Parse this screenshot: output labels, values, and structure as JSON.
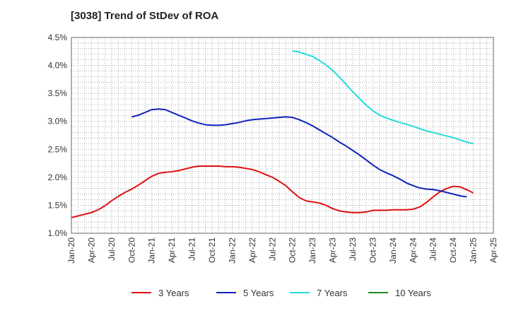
{
  "chart_data": {
    "type": "line",
    "title": "[3038]  Trend of StDev of ROA",
    "xlabel": "",
    "ylabel": "",
    "ylim": [
      1.0,
      4.5
    ],
    "y_ticks": [
      "1.0%",
      "1.5%",
      "2.0%",
      "2.5%",
      "3.0%",
      "3.5%",
      "4.0%",
      "4.5%"
    ],
    "x_ticks": [
      "Jan-20",
      "Apr-20",
      "Jul-20",
      "Oct-20",
      "Jan-21",
      "Apr-21",
      "Jul-21",
      "Oct-21",
      "Jan-22",
      "Apr-22",
      "Jul-22",
      "Oct-22",
      "Jan-23",
      "Apr-23",
      "Jul-23",
      "Oct-23",
      "Jan-24",
      "Apr-24",
      "Jul-24",
      "Oct-24",
      "Jan-25",
      "Apr-25"
    ],
    "grid": true,
    "legend_position": "bottom",
    "series": [
      {
        "name": "3 Years",
        "color": "#dd1111",
        "points": [
          [
            "Jan-20",
            1.28
          ],
          [
            "Feb-20",
            1.31
          ],
          [
            "Mar-20",
            1.34
          ],
          [
            "Apr-20",
            1.37
          ],
          [
            "May-20",
            1.42
          ],
          [
            "Jun-20",
            1.49
          ],
          [
            "Jul-20",
            1.58
          ],
          [
            "Aug-20",
            1.66
          ],
          [
            "Sep-20",
            1.73
          ],
          [
            "Oct-20",
            1.79
          ],
          [
            "Nov-20",
            1.86
          ],
          [
            "Dec-20",
            1.94
          ],
          [
            "Jan-21",
            2.02
          ],
          [
            "Feb-21",
            2.07
          ],
          [
            "Mar-21",
            2.09
          ],
          [
            "Apr-21",
            2.1
          ],
          [
            "May-21",
            2.12
          ],
          [
            "Jun-21",
            2.15
          ],
          [
            "Jul-21",
            2.18
          ],
          [
            "Aug-21",
            2.2
          ],
          [
            "Sep-21",
            2.2
          ],
          [
            "Oct-21",
            2.2
          ],
          [
            "Nov-21",
            2.2
          ],
          [
            "Dec-21",
            2.19
          ],
          [
            "Jan-22",
            2.19
          ],
          [
            "Feb-22",
            2.18
          ],
          [
            "Mar-22",
            2.16
          ],
          [
            "Apr-22",
            2.14
          ],
          [
            "May-22",
            2.1
          ],
          [
            "Jun-22",
            2.05
          ],
          [
            "Jul-22",
            2.0
          ],
          [
            "Aug-22",
            1.93
          ],
          [
            "Sep-22",
            1.85
          ],
          [
            "Oct-22",
            1.74
          ],
          [
            "Nov-22",
            1.64
          ],
          [
            "Dec-22",
            1.58
          ],
          [
            "Jan-23",
            1.56
          ],
          [
            "Feb-23",
            1.54
          ],
          [
            "Mar-23",
            1.5
          ],
          [
            "Apr-23",
            1.44
          ],
          [
            "May-23",
            1.4
          ],
          [
            "Jun-23",
            1.38
          ],
          [
            "Jul-23",
            1.37
          ],
          [
            "Aug-23",
            1.37
          ],
          [
            "Sep-23",
            1.38
          ],
          [
            "Oct-23",
            1.41
          ],
          [
            "Nov-23",
            1.41
          ],
          [
            "Dec-23",
            1.41
          ],
          [
            "Jan-24",
            1.42
          ],
          [
            "Feb-24",
            1.42
          ],
          [
            "Mar-24",
            1.42
          ],
          [
            "Apr-24",
            1.43
          ],
          [
            "May-24",
            1.47
          ],
          [
            "Jun-24",
            1.55
          ],
          [
            "Jul-24",
            1.65
          ],
          [
            "Aug-24",
            1.74
          ],
          [
            "Sep-24",
            1.8
          ],
          [
            "Oct-24",
            1.84
          ],
          [
            "Nov-24",
            1.83
          ],
          [
            "Dec-24",
            1.78
          ],
          [
            "Jan-25",
            1.72
          ]
        ]
      },
      {
        "name": "5 Years",
        "color": "#1122bb",
        "points": [
          [
            "Oct-20",
            3.08
          ],
          [
            "Nov-20",
            3.11
          ],
          [
            "Dec-20",
            3.16
          ],
          [
            "Jan-21",
            3.21
          ],
          [
            "Feb-21",
            3.22
          ],
          [
            "Mar-21",
            3.21
          ],
          [
            "Apr-21",
            3.16
          ],
          [
            "May-21",
            3.11
          ],
          [
            "Jun-21",
            3.06
          ],
          [
            "Jul-21",
            3.01
          ],
          [
            "Aug-21",
            2.97
          ],
          [
            "Sep-21",
            2.94
          ],
          [
            "Oct-21",
            2.93
          ],
          [
            "Nov-21",
            2.93
          ],
          [
            "Dec-21",
            2.94
          ],
          [
            "Jan-22",
            2.96
          ],
          [
            "Feb-22",
            2.98
          ],
          [
            "Mar-22",
            3.01
          ],
          [
            "Apr-22",
            3.03
          ],
          [
            "May-22",
            3.04
          ],
          [
            "Jun-22",
            3.05
          ],
          [
            "Jul-22",
            3.06
          ],
          [
            "Aug-22",
            3.07
          ],
          [
            "Sep-22",
            3.08
          ],
          [
            "Oct-22",
            3.07
          ],
          [
            "Nov-22",
            3.03
          ],
          [
            "Dec-22",
            2.98
          ],
          [
            "Jan-23",
            2.92
          ],
          [
            "Feb-23",
            2.85
          ],
          [
            "Mar-23",
            2.78
          ],
          [
            "Apr-23",
            2.71
          ],
          [
            "May-23",
            2.63
          ],
          [
            "Jun-23",
            2.56
          ],
          [
            "Jul-23",
            2.48
          ],
          [
            "Aug-23",
            2.4
          ],
          [
            "Sep-23",
            2.31
          ],
          [
            "Oct-23",
            2.22
          ],
          [
            "Nov-23",
            2.14
          ],
          [
            "Dec-23",
            2.08
          ],
          [
            "Jan-24",
            2.03
          ],
          [
            "Feb-24",
            1.97
          ],
          [
            "Mar-24",
            1.9
          ],
          [
            "Apr-24",
            1.85
          ],
          [
            "May-24",
            1.81
          ],
          [
            "Jun-24",
            1.79
          ],
          [
            "Jul-24",
            1.78
          ],
          [
            "Aug-24",
            1.76
          ],
          [
            "Sep-24",
            1.73
          ],
          [
            "Oct-24",
            1.7
          ],
          [
            "Nov-24",
            1.67
          ],
          [
            "Dec-24",
            1.65
          ]
        ]
      },
      {
        "name": "7 Years",
        "color": "#22dddd",
        "points": [
          [
            "Oct-22",
            4.26
          ],
          [
            "Nov-22",
            4.24
          ],
          [
            "Dec-22",
            4.2
          ],
          [
            "Jan-23",
            4.16
          ],
          [
            "Feb-23",
            4.09
          ],
          [
            "Mar-23",
            4.01
          ],
          [
            "Apr-23",
            3.91
          ],
          [
            "May-23",
            3.79
          ],
          [
            "Jun-23",
            3.66
          ],
          [
            "Jul-23",
            3.53
          ],
          [
            "Aug-23",
            3.41
          ],
          [
            "Sep-23",
            3.29
          ],
          [
            "Oct-23",
            3.19
          ],
          [
            "Nov-23",
            3.11
          ],
          [
            "Dec-23",
            3.06
          ],
          [
            "Jan-24",
            3.02
          ],
          [
            "Feb-24",
            2.98
          ],
          [
            "Mar-24",
            2.95
          ],
          [
            "Apr-24",
            2.91
          ],
          [
            "May-24",
            2.87
          ],
          [
            "Jun-24",
            2.83
          ],
          [
            "Jul-24",
            2.8
          ],
          [
            "Aug-24",
            2.77
          ],
          [
            "Sep-24",
            2.74
          ],
          [
            "Oct-24",
            2.71
          ],
          [
            "Nov-24",
            2.67
          ],
          [
            "Dec-24",
            2.63
          ],
          [
            "Jan-25",
            2.6
          ]
        ]
      },
      {
        "name": "10 Years",
        "color": "#228822",
        "points": []
      }
    ]
  }
}
